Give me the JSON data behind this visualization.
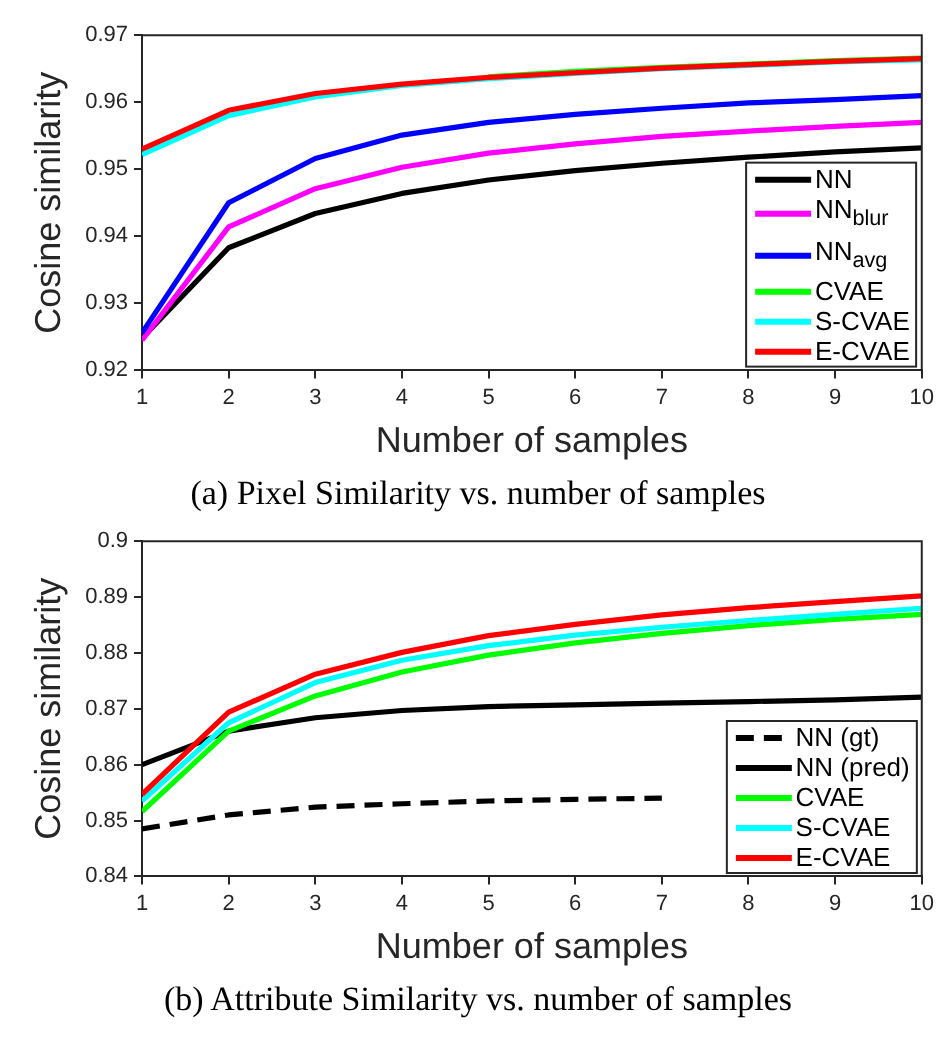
{
  "chart_data": [
    {
      "type": "line",
      "title": "(a) Pixel Similarity vs. number of samples",
      "xlabel": "Number of samples",
      "ylabel": "Cosine similarity",
      "x": [
        1,
        2,
        3,
        4,
        5,
        6,
        7,
        8,
        9,
        10
      ],
      "xlim": [
        1,
        10
      ],
      "xticks": [
        1,
        2,
        3,
        4,
        5,
        6,
        7,
        8,
        9,
        10
      ],
      "ylim": [
        0.92,
        0.97
      ],
      "yticks": [
        0.92,
        0.93,
        0.94,
        0.95,
        0.96,
        0.97
      ],
      "grid": false,
      "legend": "bottom right",
      "marker": "none",
      "line_style": "solid",
      "series": [
        {
          "name": "NN",
          "color": "#000000",
          "values": [
            0.9248,
            0.9383,
            0.9434,
            0.9464,
            0.9484,
            0.9498,
            0.9509,
            0.9518,
            0.9526,
            0.9532
          ]
        },
        {
          "name": "NN$_{blur}$",
          "color": "#ff00ff",
          "values": [
            0.9245,
            0.9414,
            0.9471,
            0.9503,
            0.9524,
            0.9538,
            0.9549,
            0.9557,
            0.9564,
            0.957
          ]
        },
        {
          "name": "NN$_{avg}$",
          "color": "#0000ff",
          "values": [
            0.9256,
            0.945,
            0.9516,
            0.9551,
            0.957,
            0.9582,
            0.9591,
            0.9599,
            0.9604,
            0.961
          ]
        },
        {
          "name": "CVAE",
          "color": "#00ff00",
          "values": [
            null,
            null,
            null,
            null,
            0.9638,
            0.9646,
            0.9652,
            0.9657,
            0.9662,
            0.9666
          ]
        },
        {
          "name": "S-CVAE",
          "color": "#00ffff",
          "values": [
            0.9522,
            0.958,
            0.9608,
            0.9625,
            0.9635,
            0.9643,
            0.965,
            0.9655,
            0.966,
            0.9663
          ]
        },
        {
          "name": "E-CVAE",
          "color": "#ff0000",
          "values": [
            0.953,
            0.9588,
            0.9613,
            0.9627,
            0.9637,
            0.9644,
            0.9651,
            0.9656,
            0.9661,
            0.9665
          ]
        }
      ]
    },
    {
      "type": "line",
      "title": "(b) Attribute Similarity vs. number of samples",
      "xlabel": "Number of samples",
      "ylabel": "Cosine similarity",
      "x": [
        1,
        2,
        3,
        4,
        5,
        6,
        7,
        8,
        9,
        10
      ],
      "xlim": [
        1,
        10
      ],
      "xticks": [
        1,
        2,
        3,
        4,
        5,
        6,
        7,
        8,
        9,
        10
      ],
      "ylim": [
        0.84,
        0.9
      ],
      "yticks": [
        0.84,
        0.85,
        0.86,
        0.87,
        0.88,
        0.89,
        0.9
      ],
      "grid": false,
      "legend": "bottom right",
      "marker": "none",
      "line_style": "solid",
      "series": [
        {
          "name": "NN (gt)",
          "color": "#000000",
          "line_style": "dashed",
          "values": [
            0.8485,
            0.851,
            0.8524,
            0.853,
            0.8535,
            0.8538,
            0.854,
            null,
            null,
            null
          ]
        },
        {
          "name": "NN (pred)",
          "color": "#000000",
          "values": [
            0.86,
            0.866,
            0.8684,
            0.8697,
            0.8704,
            0.8707,
            0.871,
            0.8713,
            0.8716,
            0.8721
          ]
        },
        {
          "name": "CVAE",
          "color": "#00ff00",
          "values": [
            0.8516,
            0.866,
            0.8723,
            0.8766,
            0.8796,
            0.8818,
            0.8835,
            0.8849,
            0.886,
            0.8869
          ]
        },
        {
          "name": "S-CVAE",
          "color": "#00ffff",
          "values": [
            0.8535,
            0.8675,
            0.8747,
            0.8787,
            0.8813,
            0.8832,
            0.8846,
            0.8858,
            0.8869,
            0.888
          ]
        },
        {
          "name": "E-CVAE",
          "color": "#ff0000",
          "values": [
            0.8547,
            0.8694,
            0.8762,
            0.8801,
            0.8831,
            0.8851,
            0.8868,
            0.8881,
            0.8892,
            0.8902
          ]
        }
      ]
    }
  ]
}
